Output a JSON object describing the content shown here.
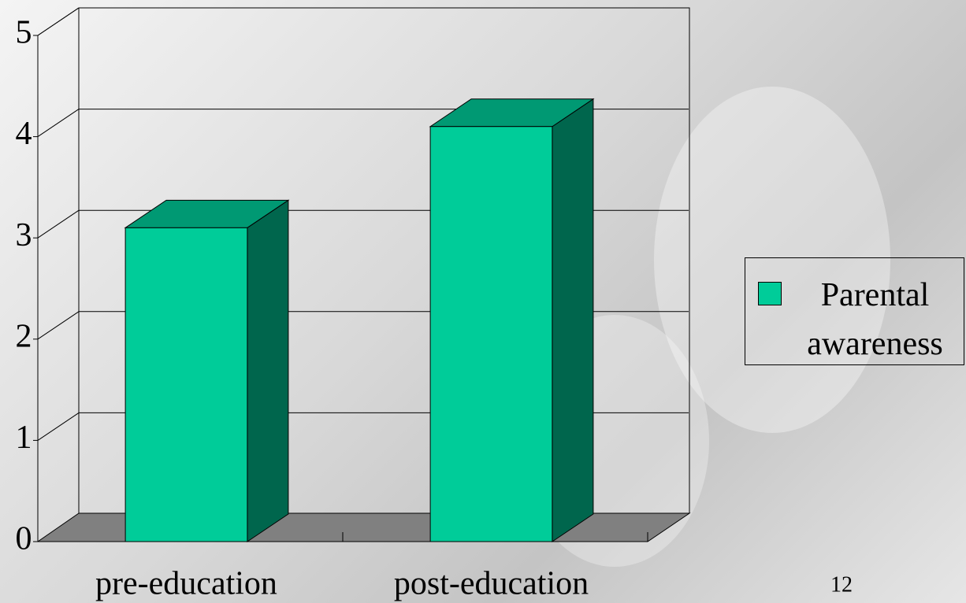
{
  "chart_data": {
    "type": "bar",
    "categories": [
      "pre-education",
      "post-education"
    ],
    "series": [
      {
        "name": "Parental awareness",
        "color": "#00cc99",
        "values": [
          3.1,
          4.1
        ]
      }
    ],
    "ylim": [
      0,
      5
    ],
    "yticks": [
      0,
      1,
      2,
      3,
      4,
      5
    ],
    "grid": true,
    "legend": "right"
  },
  "page_number": "12"
}
